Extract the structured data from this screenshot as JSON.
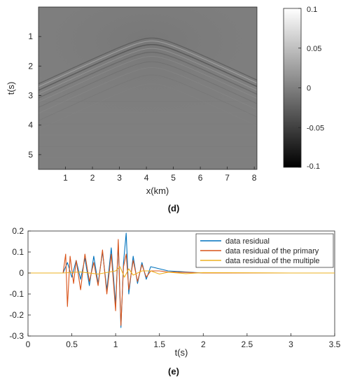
{
  "chart_data": [
    {
      "type": "heatmap",
      "panel_label": "(d)",
      "xlabel": "x(km)",
      "ylabel": "t(s)",
      "xlim": [
        0,
        8.1
      ],
      "ylim": [
        5.5,
        0
      ],
      "x_ticks": [
        1,
        2,
        3,
        4,
        5,
        6,
        7,
        8
      ],
      "y_ticks": [
        1,
        2,
        3,
        4,
        5
      ],
      "colormap": "gray",
      "clim": [
        -0.1,
        0.1
      ],
      "colorbar_ticks": [
        "0.1",
        "0.05",
        "0",
        "-0.05",
        "-0.1"
      ],
      "colorbar_values": [
        0.1,
        0.05,
        0,
        -0.05,
        -0.1
      ],
      "event_apex": {
        "x_km": 4.2,
        "t_s": 0.9,
        "edge_t_s": 2.7
      },
      "grid": false
    },
    {
      "type": "line",
      "panel_label": "(e)",
      "xlabel": "t(s)",
      "ylabel": "",
      "xlim": [
        0,
        3.5
      ],
      "ylim": [
        -0.3,
        0.2
      ],
      "x_ticks": [
        "0",
        "0.5",
        "1",
        "1.5",
        "2",
        "2.5",
        "3",
        "3.5"
      ],
      "x_tick_values": [
        0,
        0.5,
        1,
        1.5,
        2,
        2.5,
        3,
        3.5
      ],
      "y_ticks": [
        "0.2",
        "0.1",
        "0",
        "-0.1",
        "-0.2",
        "-0.3"
      ],
      "y_tick_values": [
        0.2,
        0.1,
        0,
        -0.1,
        -0.2,
        -0.3
      ],
      "legend_position": "top-right",
      "grid": false,
      "series": [
        {
          "name": "data residual",
          "color": "#0072BD",
          "x": [
            0.4,
            0.45,
            0.5,
            0.55,
            0.6,
            0.65,
            0.7,
            0.75,
            0.8,
            0.85,
            0.9,
            0.95,
            1.0,
            1.03,
            1.06,
            1.09,
            1.12,
            1.15,
            1.2,
            1.25,
            1.3,
            1.35,
            1.4,
            1.5,
            1.6,
            1.8,
            2.0,
            2.5,
            3.0,
            3.5
          ],
          "values": [
            0,
            0.05,
            -0.02,
            0.06,
            -0.03,
            0.07,
            -0.06,
            0.08,
            -0.05,
            0.1,
            -0.08,
            0.12,
            -0.15,
            0.14,
            -0.26,
            0.05,
            0.19,
            -0.1,
            0.08,
            -0.05,
            0.05,
            -0.03,
            0.03,
            0.02,
            0.01,
            0.005,
            0,
            0,
            0,
            0
          ]
        },
        {
          "name": "data residual of the primary",
          "color": "#D95319",
          "x": [
            0.4,
            0.43,
            0.45,
            0.48,
            0.52,
            0.55,
            0.6,
            0.65,
            0.7,
            0.75,
            0.8,
            0.85,
            0.9,
            0.95,
            1.0,
            1.03,
            1.06,
            1.09,
            1.12,
            1.15,
            1.2,
            1.25,
            1.3,
            1.35,
            1.4,
            1.5,
            1.6,
            1.8,
            2.0,
            2.5,
            3.0,
            3.5
          ],
          "values": [
            0,
            0.09,
            -0.16,
            0.08,
            -0.05,
            0.06,
            -0.08,
            0.09,
            -0.04,
            0.05,
            -0.06,
            0.11,
            -0.1,
            0.09,
            -0.18,
            0.16,
            -0.25,
            0.03,
            0.09,
            -0.08,
            0.06,
            -0.04,
            0.04,
            -0.02,
            0.01,
            0.01,
            0.005,
            0.003,
            0,
            0,
            0,
            0
          ]
        },
        {
          "name": "data residual of the multiple",
          "color": "#EDB120",
          "x": [
            0.4,
            0.6,
            0.8,
            1.0,
            1.05,
            1.1,
            1.15,
            1.2,
            1.3,
            1.4,
            1.5,
            1.6,
            1.8,
            2.0,
            2.5,
            3.0,
            3.5
          ],
          "values": [
            0,
            0.005,
            -0.005,
            0.01,
            0.03,
            -0.02,
            0.02,
            -0.01,
            0.01,
            0.01,
            -0.005,
            0.004,
            -0.003,
            0.002,
            0.001,
            0,
            0
          ]
        }
      ]
    }
  ]
}
